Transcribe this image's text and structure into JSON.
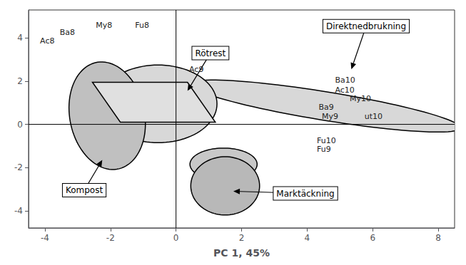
{
  "chart_data": {
    "type": "scatter",
    "xlabel": "PC 1, 45%",
    "xlim": [
      -4.5,
      8.5
    ],
    "ylim": [
      -4.8,
      5.3
    ],
    "xticks": [
      -4,
      -2,
      0,
      2,
      4,
      6,
      8
    ],
    "yticks": [
      -4,
      -2,
      0,
      2,
      4
    ],
    "grid": false,
    "background_color": "#ffffff",
    "point_labels": [
      "Ba8",
      "Ac8",
      "My8",
      "Fu8",
      "Ac9",
      "Ba10",
      "Ac10",
      "My10",
      "Ba9",
      "My9",
      "ut10",
      "Fu10",
      "Fu9"
    ],
    "x": [
      -3.55,
      -4.15,
      -2.45,
      -1.25,
      0.4,
      4.85,
      4.85,
      5.3,
      4.35,
      4.45,
      5.75,
      4.3,
      4.3
    ],
    "y": [
      4.25,
      3.85,
      4.6,
      4.6,
      2.55,
      2.05,
      1.6,
      1.2,
      0.8,
      0.38,
      0.38,
      -0.75,
      -1.15
    ],
    "shapes": [
      {
        "kind": "ellipse",
        "cx": 4.55,
        "cy": 0.85,
        "width": 8.5,
        "height": 1.3,
        "angle": -14,
        "color": "#d8d8d8",
        "edge_color": "#000000"
      },
      {
        "kind": "ellipse",
        "cx": -0.55,
        "cy": 0.95,
        "width": 3.6,
        "height": 3.6,
        "angle": 0,
        "color": "#d8d8d8",
        "edge_color": "#000000"
      },
      {
        "kind": "ellipse",
        "cx": -2.1,
        "cy": 0.4,
        "width": 2.3,
        "height": 5.0,
        "angle": 5,
        "color": "#c0c0c0",
        "edge_color": "#000000"
      },
      {
        "kind": "polygon",
        "points": [
          [
            -2.55,
            1.95
          ],
          [
            0.35,
            1.95
          ],
          [
            1.2,
            0.1
          ],
          [
            -1.7,
            0.1
          ]
        ],
        "color": "#e0e0e0",
        "edge_color": "#000000"
      },
      {
        "kind": "ellipse",
        "cx": 1.45,
        "cy": -1.85,
        "width": 2.05,
        "height": 1.5,
        "angle": 0,
        "color": "#c8c8c8",
        "edge_color": "#000000"
      },
      {
        "kind": "ellipse",
        "cx": 1.5,
        "cy": -2.85,
        "width": 2.1,
        "height": 2.7,
        "angle": 0,
        "color": "#b8b8b8",
        "edge_color": "#000000"
      }
    ],
    "hlines": [
      0
    ],
    "vlines": [
      0
    ],
    "annotations": [
      {
        "text": "Rötrest",
        "xy": [
          0.35,
          1.55
        ],
        "xytext": [
          1.05,
          3.3
        ]
      },
      {
        "text": "Direktnedbrukning",
        "xy": [
          5.35,
          2.55
        ],
        "xytext": [
          5.8,
          4.55
        ]
      },
      {
        "text": "Kompost",
        "xy": [
          -2.25,
          -1.65
        ],
        "xytext": [
          -2.8,
          -3.05
        ]
      },
      {
        "text": "Marktäckning",
        "xy": [
          1.75,
          -3.1
        ],
        "xytext": [
          3.95,
          -3.2
        ]
      }
    ]
  }
}
